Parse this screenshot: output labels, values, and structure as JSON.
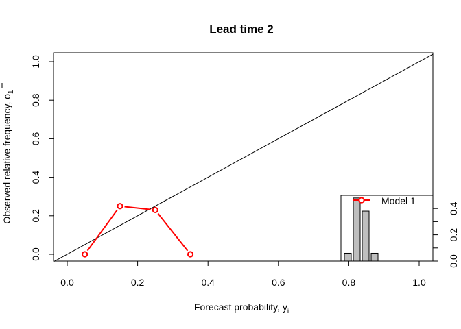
{
  "chart_data": {
    "type": "line",
    "title": "Lead time 2",
    "xlabel": "Forecast probability, y",
    "xlabel_sub": "i",
    "ylabel": "Observed relative frequency, o",
    "ylabel_sub": "1",
    "xlim": [
      0,
      1
    ],
    "ylim": [
      0,
      1
    ],
    "x_ticks": [
      "0.0",
      "0.2",
      "0.4",
      "0.6",
      "0.8",
      "1.0"
    ],
    "y_ticks": [
      "0.0",
      "0.2",
      "0.4",
      "0.6",
      "0.8",
      "1.0"
    ],
    "reference_line": {
      "from": [
        0,
        0
      ],
      "to": [
        1,
        1
      ]
    },
    "series": [
      {
        "name": "Model 1",
        "color": "#ff0000",
        "x": [
          0.05,
          0.15,
          0.25,
          0.35
        ],
        "y": [
          0.0,
          0.25,
          0.23,
          0.0
        ]
      }
    ],
    "legend": {
      "position": "bottom-right",
      "label": "Model 1"
    },
    "inset_histogram": {
      "position": "bottom-right",
      "bin_centers": [
        0.05,
        0.15,
        0.25,
        0.35
      ],
      "values": [
        0.06,
        0.48,
        0.38,
        0.06
      ],
      "ylim": [
        0,
        0.5
      ],
      "y_ticks": [
        "0.0",
        "0.2",
        "0.4"
      ],
      "bar_color": "#bebebe"
    }
  }
}
